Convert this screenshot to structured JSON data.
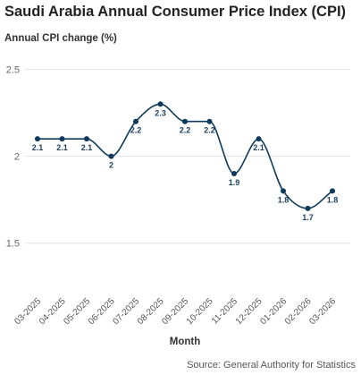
{
  "title": "Saudi Arabia Annual Consumer Price Index (CPI)",
  "source": "Source: General Authority for Statistics",
  "chart_data": {
    "type": "line",
    "title": "Saudi Arabia Annual Consumer Price Index (CPI)",
    "ylabel": "Annual CPI change (%)",
    "xlabel": "Month",
    "categories": [
      "03-2025",
      "04-2025",
      "05-2025",
      "06-2025",
      "07-2025",
      "08-2025",
      "09-2025",
      "10-2025",
      "11-2025",
      "12-2025",
      "01-2026",
      "02-2026",
      "03-2026"
    ],
    "series": [
      {
        "values": [
          2.1,
          2.1,
          2.1,
          2.0,
          2.2,
          2.3,
          2.2,
          2.2,
          1.9,
          2.1,
          1.8,
          1.7,
          1.8
        ]
      }
    ],
    "data_labels": [
      "2.1",
      "2.1",
      "2.1",
      "2",
      "2.2",
      "2.3",
      "2.2",
      "2.2",
      "1.9",
      "2.1",
      "1.8",
      "1.7",
      "1.8"
    ],
    "ylim": [
      1.2,
      2.6
    ],
    "yticks": [
      1.5,
      2,
      2.5
    ],
    "ytick_labels": [
      "1.5",
      "2",
      "2.5"
    ],
    "grid": "horizontal",
    "line_style": "smooth",
    "color": "#0d3a5c"
  }
}
